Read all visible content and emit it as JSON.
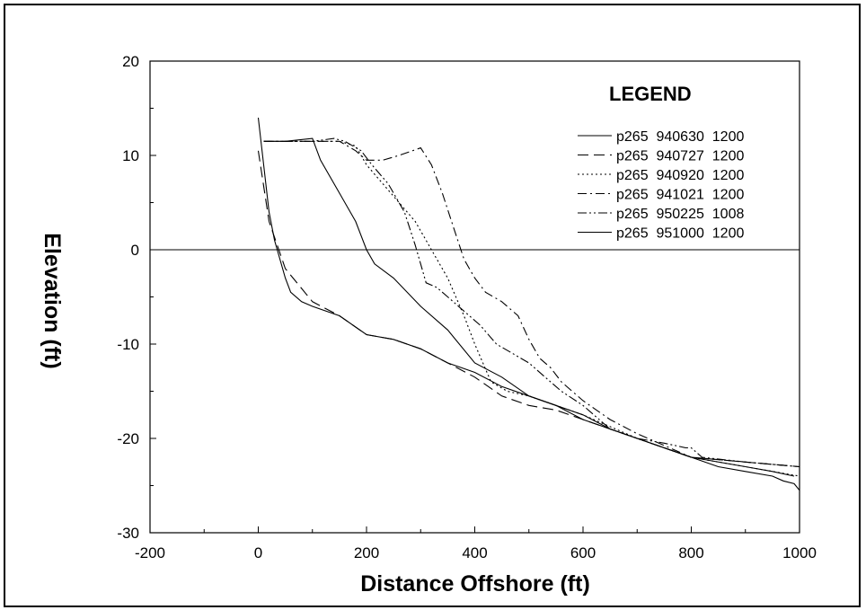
{
  "chart_data": {
    "type": "line",
    "title": "",
    "xlabel": "Distance Offshore (ft)",
    "ylabel": "Elevation (ft)",
    "xlim": [
      -200,
      1000
    ],
    "ylim": [
      -30,
      20
    ],
    "xticks": [
      -200,
      0,
      200,
      400,
      600,
      800,
      1000
    ],
    "yticks": [
      -30,
      -20,
      -10,
      0,
      10,
      20
    ],
    "xtick_labels": [
      "-200",
      "0",
      "200",
      "400",
      "600",
      "800",
      "1000"
    ],
    "ytick_labels": [
      "-30",
      "-20",
      "-10",
      "0",
      "10",
      "20"
    ],
    "grid": false,
    "reference_line_y": 0,
    "legend": {
      "title": "LEGEND",
      "position": "top-right"
    },
    "series": [
      {
        "name": "p265  940630  1200",
        "dash": "solid",
        "x": [
          10,
          20,
          50,
          100,
          115,
          150,
          180,
          200,
          215,
          250,
          300,
          350,
          400,
          450,
          500,
          550,
          600,
          700,
          800,
          900,
          950,
          990
        ],
        "y": [
          11.5,
          11.5,
          11.5,
          11.8,
          9.5,
          6,
          3,
          0,
          -1.5,
          -3,
          -6,
          -8.5,
          -12,
          -13.5,
          -15.5,
          -16.5,
          -18,
          -20,
          -22,
          -23,
          -23.5,
          -24
        ]
      },
      {
        "name": "p265  940727  1200",
        "dash": "long-dash",
        "x": [
          0,
          20,
          50,
          100,
          150,
          200,
          250,
          300,
          350,
          400,
          450,
          500,
          550,
          600,
          700,
          800,
          900,
          1000
        ],
        "y": [
          10.5,
          3,
          -2,
          -5.5,
          -7,
          -9,
          -9.5,
          -10.5,
          -12,
          -13.5,
          -15.5,
          -16.5,
          -17,
          -18,
          -20,
          -22,
          -22.5,
          -23
        ]
      },
      {
        "name": "p265  940920  1200",
        "dash": "dotted",
        "x": [
          10,
          60,
          120,
          150,
          180,
          200,
          230,
          260,
          290,
          310,
          330,
          350,
          380,
          400,
          430,
          460,
          500,
          550,
          600,
          700,
          800,
          900,
          1000
        ],
        "y": [
          11.5,
          11.5,
          11.5,
          11.5,
          11,
          9,
          7,
          5,
          3,
          1,
          -1,
          -3,
          -7,
          -10,
          -14,
          -15,
          -15.5,
          -16.5,
          -17.5,
          -20,
          -22,
          -23,
          -24
        ]
      },
      {
        "name": "p265  941021  1200",
        "dash": "dash-dot",
        "x": [
          10,
          60,
          100,
          150,
          180,
          200,
          230,
          260,
          300,
          320,
          340,
          360,
          380,
          400,
          420,
          450,
          480,
          500,
          520,
          540,
          560,
          600,
          650,
          700,
          800,
          900,
          1000
        ],
        "y": [
          11.5,
          11.5,
          11.5,
          11.5,
          10.5,
          9.5,
          9.5,
          10,
          10.8,
          9,
          6,
          2.5,
          -1,
          -3,
          -4.5,
          -5.5,
          -7,
          -9.5,
          -11.5,
          -12.5,
          -14,
          -16,
          -18,
          -19.5,
          -22,
          -22.5,
          -23
        ]
      },
      {
        "name": "p265  950225  1008",
        "dash": "dash-dot-dot",
        "x": [
          10,
          60,
          100,
          140,
          160,
          190,
          210,
          240,
          270,
          290,
          310,
          330,
          350,
          380,
          410,
          440,
          470,
          500,
          530,
          560,
          600,
          650,
          700,
          750,
          790,
          800,
          820,
          900,
          1000
        ],
        "y": [
          11.5,
          11.5,
          11.5,
          11.8,
          11.5,
          10.5,
          9,
          7,
          4,
          0.5,
          -3.5,
          -4,
          -5,
          -6.5,
          -8,
          -10,
          -11,
          -12,
          -13.5,
          -15,
          -16.5,
          -19,
          -20,
          -20.5,
          -21,
          -21,
          -22,
          -22.5,
          -23
        ]
      },
      {
        "name": "p265  951000  1200",
        "dash": "solid",
        "x": [
          0,
          10,
          20,
          30,
          50,
          60,
          80,
          100,
          150,
          200,
          250,
          300,
          350,
          400,
          450,
          500,
          550,
          600,
          650,
          700,
          750,
          800,
          850,
          900,
          950,
          970,
          990,
          1000
        ],
        "y": [
          14,
          9,
          4,
          1,
          -3,
          -4.5,
          -5.5,
          -6,
          -7,
          -9,
          -9.5,
          -10.5,
          -12,
          -13,
          -14.5,
          -15.5,
          -16.5,
          -17.5,
          -19,
          -20,
          -21,
          -22,
          -23,
          -23.5,
          -24,
          -24.5,
          -24.8,
          -25.5
        ]
      }
    ]
  }
}
